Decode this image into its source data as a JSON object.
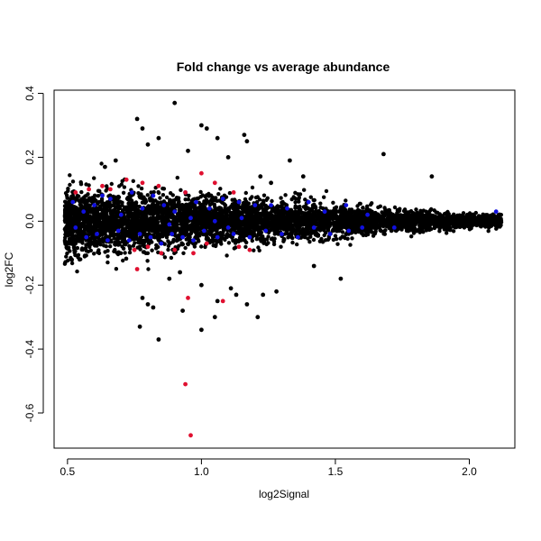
{
  "chart_data": {
    "type": "scatter",
    "title": "Fold change vs average abundance",
    "xlabel": "log2Signal",
    "ylabel": "log2FC",
    "xlim": [
      0.45,
      2.17
    ],
    "ylim": [
      -0.71,
      0.41
    ],
    "x_ticks": [
      0.5,
      1.0,
      1.5,
      2.0
    ],
    "x_tick_labels": [
      "0.5",
      "1.0",
      "1.5",
      "2.0"
    ],
    "y_ticks": [
      -0.6,
      -0.4,
      -0.2,
      0.0,
      0.2,
      0.4
    ],
    "y_tick_labels": [
      "-0.6",
      "-0.4",
      "-0.2",
      "0.0",
      "0.2",
      "0.4"
    ],
    "grid": false,
    "legend": "none",
    "series": [
      {
        "color": "#000000",
        "points": [
          [
            0.9,
            0.37
          ],
          [
            0.76,
            0.32
          ],
          [
            1.0,
            0.3
          ],
          [
            1.02,
            0.29
          ],
          [
            0.78,
            0.29
          ],
          [
            1.16,
            0.27
          ],
          [
            0.84,
            0.26
          ],
          [
            1.06,
            0.26
          ],
          [
            1.17,
            0.25
          ],
          [
            0.8,
            0.24
          ],
          [
            1.68,
            0.21
          ],
          [
            1.86,
            0.14
          ],
          [
            1.38,
            0.14
          ],
          [
            1.33,
            0.19
          ],
          [
            1.22,
            0.14
          ],
          [
            0.68,
            0.19
          ],
          [
            0.95,
            0.22
          ],
          [
            1.1,
            0.2
          ],
          [
            0.64,
            0.17
          ],
          [
            1.26,
            0.12
          ],
          [
            0.78,
            -0.24
          ],
          [
            0.8,
            -0.26
          ],
          [
            0.82,
            -0.27
          ],
          [
            0.77,
            -0.33
          ],
          [
            0.84,
            -0.37
          ],
          [
            0.88,
            -0.18
          ],
          [
            1.0,
            -0.2
          ],
          [
            1.05,
            -0.3
          ],
          [
            1.13,
            -0.23
          ],
          [
            1.17,
            -0.26
          ],
          [
            1.21,
            -0.3
          ],
          [
            1.23,
            -0.23
          ],
          [
            1.28,
            -0.22
          ],
          [
            1.0,
            -0.34
          ],
          [
            1.52,
            -0.18
          ],
          [
            1.42,
            -0.14
          ],
          [
            0.92,
            -0.16
          ],
          [
            1.06,
            -0.25
          ],
          [
            1.11,
            -0.21
          ],
          [
            0.93,
            -0.28
          ]
        ]
      },
      {
        "color": "#1010e0",
        "points": [
          [
            0.52,
            0.06
          ],
          [
            0.56,
            0.03
          ],
          [
            0.6,
            0.05
          ],
          [
            0.63,
            0.08
          ],
          [
            0.66,
            0.07
          ],
          [
            0.7,
            0.02
          ],
          [
            0.74,
            0.09
          ],
          [
            0.78,
            0.04
          ],
          [
            0.82,
            0.08
          ],
          [
            0.86,
            0.05
          ],
          [
            0.9,
            0.03
          ],
          [
            0.94,
            0.09
          ],
          [
            0.98,
            0.06
          ],
          [
            1.03,
            0.04
          ],
          [
            1.08,
            0.07
          ],
          [
            1.14,
            0.06
          ],
          [
            1.2,
            0.05
          ],
          [
            1.26,
            0.05
          ],
          [
            1.32,
            0.04
          ],
          [
            1.4,
            0.06
          ],
          [
            1.46,
            0.03
          ],
          [
            1.54,
            0.05
          ],
          [
            1.62,
            0.02
          ],
          [
            2.1,
            0.03
          ],
          [
            0.53,
            -0.02
          ],
          [
            0.57,
            -0.05
          ],
          [
            0.61,
            -0.04
          ],
          [
            0.65,
            -0.06
          ],
          [
            0.69,
            -0.03
          ],
          [
            0.73,
            -0.06
          ],
          [
            0.77,
            -0.04
          ],
          [
            0.81,
            -0.05
          ],
          [
            0.85,
            -0.07
          ],
          [
            0.89,
            -0.04
          ],
          [
            0.93,
            -0.05
          ],
          [
            0.97,
            -0.06
          ],
          [
            1.01,
            -0.03
          ],
          [
            1.06,
            -0.05
          ],
          [
            1.12,
            -0.04
          ],
          [
            1.18,
            -0.05
          ],
          [
            1.24,
            -0.03
          ],
          [
            1.3,
            -0.04
          ],
          [
            1.36,
            -0.05
          ],
          [
            1.42,
            -0.02
          ],
          [
            1.48,
            -0.04
          ],
          [
            1.55,
            -0.03
          ],
          [
            1.6,
            -0.02
          ],
          [
            1.72,
            -0.02
          ],
          [
            1.1,
            -0.02
          ],
          [
            0.96,
            0.01
          ],
          [
            1.05,
            0.0
          ],
          [
            1.15,
            0.01
          ],
          [
            0.88,
            -0.01
          ]
        ]
      },
      {
        "color": "#e01030",
        "points": [
          [
            0.53,
            0.09
          ],
          [
            0.58,
            0.1
          ],
          [
            0.63,
            0.11
          ],
          [
            0.66,
            0.1
          ],
          [
            0.72,
            0.13
          ],
          [
            0.78,
            0.12
          ],
          [
            0.84,
            0.11
          ],
          [
            0.94,
            0.09
          ],
          [
            1.0,
            0.15
          ],
          [
            1.05,
            0.12
          ],
          [
            1.12,
            0.09
          ],
          [
            0.75,
            -0.09
          ],
          [
            0.8,
            -0.08
          ],
          [
            0.85,
            -0.1
          ],
          [
            0.9,
            -0.09
          ],
          [
            0.97,
            -0.1
          ],
          [
            1.02,
            -0.07
          ],
          [
            1.14,
            -0.08
          ],
          [
            1.18,
            -0.09
          ],
          [
            0.76,
            -0.15
          ],
          [
            0.95,
            -0.24
          ],
          [
            1.08,
            -0.25
          ],
          [
            0.94,
            -0.51
          ],
          [
            0.96,
            -0.67
          ]
        ]
      }
    ]
  }
}
